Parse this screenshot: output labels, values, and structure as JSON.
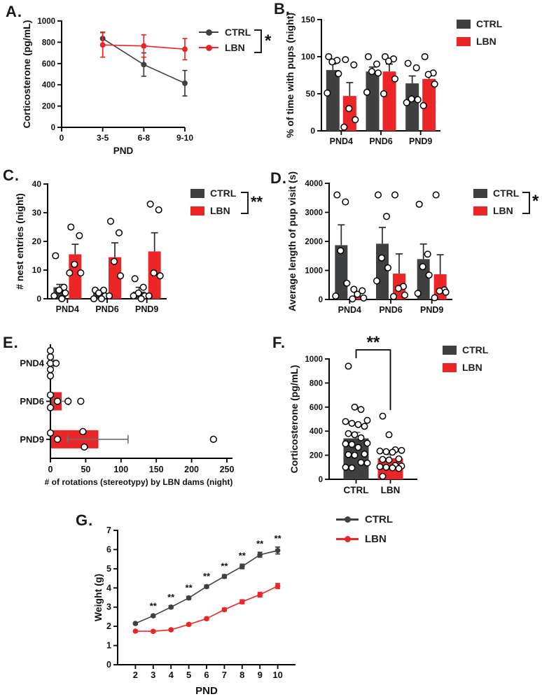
{
  "legend_labels": {
    "ctrl": "CTRL",
    "lbn": "LBN"
  },
  "colors": {
    "ctrl": "#3F4041",
    "lbn": "#EC2527",
    "point_fill": "#FFFFFF",
    "point_stroke": "#000000",
    "axis": "#000000",
    "error_dark": "#2B2B2B",
    "error_gray": "#6E6E6E"
  },
  "chart_data": [
    {
      "id": "A",
      "letter": "A.",
      "type": "line",
      "xlabel": "PND",
      "ylabel": "Corticosterone (pg/mL)",
      "x_categories": [
        "3-5",
        "6-8",
        "9-10"
      ],
      "x_origin_label": "0",
      "ylim": [
        0,
        1000
      ],
      "yticks": [
        0,
        200,
        400,
        600,
        800,
        1000
      ],
      "significance": "*",
      "legend_position": "right",
      "series": [
        {
          "name": "CTRL",
          "color_key": "ctrl",
          "values": [
            835,
            590,
            415
          ],
          "errors": [
            60,
            110,
            120
          ]
        },
        {
          "name": "LBN",
          "color_key": "lbn",
          "values": [
            775,
            765,
            735
          ],
          "errors": [
            115,
            105,
            100
          ]
        }
      ]
    },
    {
      "id": "B",
      "letter": "B.",
      "type": "grouped_bar",
      "ylabel": "% of time with pups (night)",
      "categories": [
        "PND4",
        "PND6",
        "PND9"
      ],
      "ylim": [
        0,
        150
      ],
      "yticks": [
        0,
        50,
        100,
        150
      ],
      "significance": null,
      "legend_position": "right",
      "series": [
        {
          "name": "CTRL",
          "color_key": "ctrl",
          "values": [
            82,
            80,
            64
          ],
          "errors": [
            8,
            6,
            10
          ],
          "points": [
            [
              100,
              95,
              93,
              77,
              51
            ],
            [
              100,
              90,
              80,
              78,
              52
            ],
            [
              91,
              85,
              43,
              42,
              38
            ]
          ]
        },
        {
          "name": "LBN",
          "color_key": "lbn",
          "values": [
            47,
            80,
            70
          ],
          "errors": [
            18,
            10,
            8
          ],
          "points": [
            [
              96,
              89,
              30,
              15,
              5
            ],
            [
              100,
              97,
              94,
              70,
              50
            ],
            [
              100,
              78,
              76,
              63,
              34
            ]
          ]
        }
      ]
    },
    {
      "id": "C",
      "letter": "C.",
      "type": "grouped_bar",
      "ylabel": "# nest entries (night)",
      "categories": [
        "PND4",
        "PND6",
        "PND9"
      ],
      "ylim": [
        0,
        40
      ],
      "yticks": [
        0,
        10,
        20,
        30,
        40
      ],
      "significance": "**",
      "legend_position": "right",
      "series": [
        {
          "name": "CTRL",
          "color_key": "ctrl",
          "values": [
            4,
            2,
            2.5
          ],
          "errors": [
            1,
            1,
            1.5
          ],
          "points": [
            [
              15,
              4,
              3,
              2,
              1,
              0
            ],
            [
              3,
              3,
              2,
              1,
              0,
              0
            ],
            [
              7,
              4,
              2,
              1,
              1,
              0
            ]
          ]
        },
        {
          "name": "LBN",
          "color_key": "lbn",
          "values": [
            15.5,
            14.5,
            16.5
          ],
          "errors": [
            3.5,
            5,
            6.5
          ],
          "points": [
            [
              25,
              22,
              12,
              9,
              9
            ],
            [
              27,
              23,
              13,
              8,
              1
            ],
            [
              33,
              31,
              9,
              8,
              1
            ]
          ]
        }
      ]
    },
    {
      "id": "D",
      "letter": "D.",
      "type": "grouped_bar",
      "ylabel": "Average length of pup visit (s)",
      "categories": [
        "PND4",
        "PND6",
        "PND9"
      ],
      "ylim": [
        0,
        4000
      ],
      "yticks": [
        0,
        1000,
        2000,
        3000,
        4000
      ],
      "significance": "*",
      "legend_position": "right",
      "series": [
        {
          "name": "CTRL",
          "color_key": "ctrl",
          "values": [
            1870,
            1920,
            1390
          ],
          "errors": [
            700,
            560,
            520
          ],
          "points": [
            [
              3600,
              3360,
              1680,
              560,
              120
            ],
            [
              3600,
              2860,
              1430,
              1090,
              640
            ],
            [
              3280,
              1560,
              1130,
              840,
              210
            ]
          ]
        },
        {
          "name": "LBN",
          "color_key": "lbn",
          "values": [
            130,
            890,
            870
          ],
          "errors": [
            120,
            680,
            670
          ],
          "points": [
            [
              350,
              300,
              180,
              50,
              20
            ],
            [
              3600,
              450,
              380,
              150,
              100
            ],
            [
              3600,
              330,
              290,
              250,
              60
            ]
          ]
        }
      ]
    },
    {
      "id": "E",
      "letter": "E.",
      "type": "horizontal_bar",
      "xlabel": "# of rotations (stereotypy) by LBN dams (night)",
      "categories": [
        "PND4",
        "PND6",
        "PND9"
      ],
      "xlim": [
        0,
        250
      ],
      "xticks": [
        0,
        50,
        100,
        150,
        200,
        250
      ],
      "series": [
        {
          "name": "LBN",
          "color_key": "lbn",
          "values": [
            1.5,
            15,
            67
          ],
          "errors": [
            3,
            11,
            43
          ],
          "points": [
            [
              0,
              0,
              0,
              0,
              0,
              8
            ],
            [
              0,
              0,
              10,
              25,
              43
            ],
            [
              0,
              10,
              46,
              48,
              231
            ]
          ]
        }
      ]
    },
    {
      "id": "F",
      "letter": "F.",
      "type": "bar",
      "ylabel": "Corticosterone (pg/mL)",
      "categories": [
        "CTRL",
        "LBN"
      ],
      "ylim": [
        0,
        1000
      ],
      "yticks": [
        0,
        200,
        400,
        600,
        800,
        1000
      ],
      "significance": "**",
      "legend_position": "right",
      "bars": [
        {
          "label": "CTRL",
          "color_key": "ctrl",
          "value": 340,
          "error": 50,
          "points": [
            940,
            600,
            580,
            490,
            480,
            465,
            455,
            440,
            380,
            370,
            345,
            300,
            295,
            290,
            265,
            210,
            205,
            200,
            140,
            135,
            100,
            95
          ]
        },
        {
          "label": "LBN",
          "color_key": "lbn",
          "value": 175,
          "error": 30,
          "points": [
            525,
            370,
            245,
            240,
            235,
            230,
            225,
            170,
            165,
            160,
            115,
            110,
            105,
            100,
            95,
            90,
            25
          ]
        }
      ]
    },
    {
      "id": "G",
      "letter": "G.",
      "type": "line",
      "xlabel": "PND",
      "ylabel": "Weight (g)",
      "x": [
        2,
        3,
        4,
        5,
        6,
        7,
        8,
        9,
        10
      ],
      "ylim": [
        0,
        7
      ],
      "yticks": [
        0,
        1,
        2,
        3,
        4,
        5,
        6,
        7
      ],
      "sig_label": "**",
      "sig_x": [
        3,
        4,
        5,
        6,
        7,
        8,
        9,
        10
      ],
      "legend_position": "right",
      "series": [
        {
          "name": "CTRL",
          "color_key": "ctrl",
          "values": [
            2.15,
            2.55,
            3.0,
            3.48,
            4.07,
            4.6,
            5.12,
            5.73,
            5.95
          ],
          "errors": [
            0.05,
            0.06,
            0.07,
            0.08,
            0.08,
            0.09,
            0.12,
            0.13,
            0.18
          ]
        },
        {
          "name": "LBN",
          "color_key": "lbn",
          "values": [
            1.75,
            1.74,
            1.82,
            2.1,
            2.4,
            2.87,
            3.28,
            3.65,
            4.1
          ],
          "errors": [
            0.04,
            0.05,
            0.05,
            0.06,
            0.07,
            0.08,
            0.1,
            0.12,
            0.13
          ]
        }
      ]
    }
  ]
}
